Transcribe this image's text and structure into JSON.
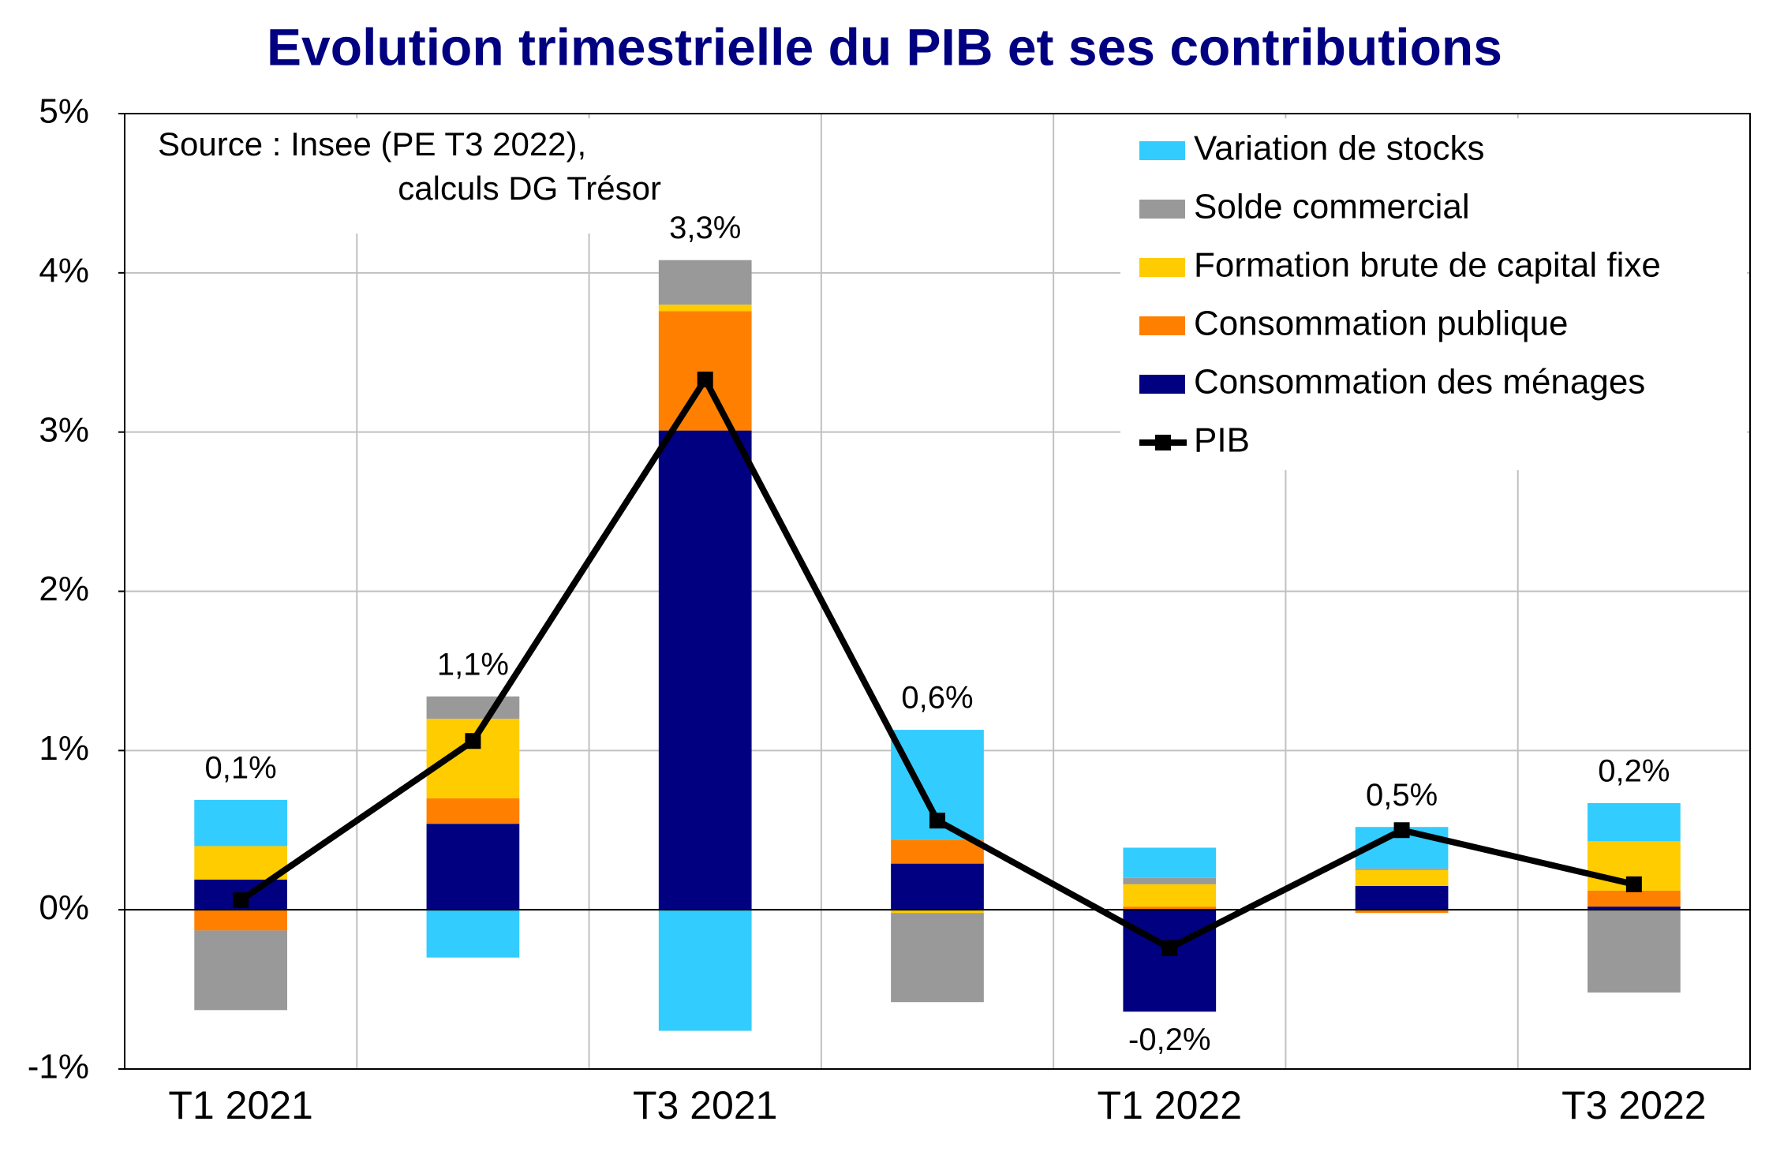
{
  "chart_data": {
    "type": "stacked-bar-line",
    "title": "Evolution trimestrielle du PIB et ses contributions",
    "annotation": [
      "Source : Insee (PE T3 2022),",
      "calculs DG Trésor"
    ],
    "categories": [
      "T1 2021",
      null,
      "T3 2021",
      null,
      "T1 2022",
      null,
      "T3 2022"
    ],
    "series": [
      {
        "name": "Consommation des ménages",
        "color": "#000080",
        "values": [
          0.19,
          0.54,
          3.01,
          0.29,
          -0.64,
          0.15,
          0.02
        ]
      },
      {
        "name": "Consommation publique",
        "color": "#ff8000",
        "values": [
          -0.13,
          0.16,
          0.75,
          0.15,
          0.02,
          -0.02,
          0.1
        ]
      },
      {
        "name": "Formation brute de capital fixe",
        "color": "#ffcc00",
        "values": [
          0.21,
          0.5,
          0.04,
          -0.02,
          0.14,
          0.1,
          0.31
        ]
      },
      {
        "name": "Solde commercial",
        "color": "#999999",
        "values": [
          -0.5,
          0.14,
          0.28,
          -0.56,
          0.04,
          0.01,
          -0.52
        ]
      },
      {
        "name": "Variation de stocks",
        "color": "#33ccff",
        "values": [
          0.29,
          -0.3,
          -0.76,
          0.69,
          0.19,
          0.26,
          0.24
        ]
      },
      {
        "name": "PIB",
        "color": "#000000",
        "type": "line",
        "values": [
          0.06,
          1.06,
          3.33,
          0.56,
          -0.24,
          0.5,
          0.16
        ],
        "value_labels": [
          "0,1%",
          "1,1%",
          "3,3%",
          "0,6%",
          "-0,2%",
          "0,5%",
          "0,2%"
        ]
      }
    ],
    "ylim": [
      -1,
      5
    ],
    "yticks": [
      {
        "value": -1,
        "label": "-1%"
      },
      {
        "value": 0,
        "label": "0%"
      },
      {
        "value": 1,
        "label": "1%"
      },
      {
        "value": 2,
        "label": "2%"
      },
      {
        "value": 3,
        "label": "3%"
      },
      {
        "value": 4,
        "label": "4%"
      },
      {
        "value": 5,
        "label": "5%"
      }
    ],
    "grid": true
  }
}
